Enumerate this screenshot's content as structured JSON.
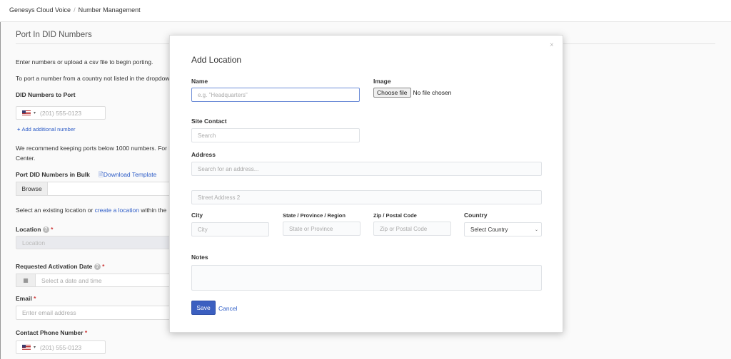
{
  "breadcrumb": [
    "Genesys Cloud Voice",
    "Number Management"
  ],
  "breadcrumb_separator": "/",
  "page": {
    "title": "Port In DID Numbers",
    "intro1": "Enter numbers or upload a csv file to begin porting.",
    "intro2": "To port a number from a country not listed in the dropdow",
    "did_label": "DID Numbers to Port",
    "phone_placeholder": "(201) 555-0123",
    "add_number": "Add additional number",
    "recommend1": "We recommend keeping ports below 1000 numbers. For l",
    "recommend2": "Center.",
    "bulk_label": "Port DID Numbers in Bulk",
    "download_template": "Download Template",
    "browse": "Browse",
    "select_loc_pre": "Select an existing location or",
    "select_loc_link": "create a location",
    "select_loc_post": "within the",
    "location_label": "Location",
    "location_placeholder": "Location",
    "activation_label": "Requested Activation Date",
    "activation_placeholder": "Select a date and time",
    "email_label": "Email",
    "email_placeholder": "Enter email address",
    "contact_label": "Contact Phone Number",
    "contact_placeholder": "(201) 555-0123",
    "required_mark": "*",
    "help_mark": "?"
  },
  "modal": {
    "title": "Add Location",
    "close": "×",
    "name_label": "Name",
    "name_placeholder": "e.g. \"Headquarters\"",
    "image_label": "Image",
    "choose_file": "Choose file",
    "no_file": "No file chosen",
    "site_contact_label": "Site Contact",
    "site_contact_placeholder": "Search",
    "address_label": "Address",
    "address_placeholder": "Search for an address...",
    "address2_placeholder": "Street Address 2",
    "city_label": "City",
    "city_placeholder": "City",
    "state_label": "State / Province / Region",
    "state_placeholder": "State or Province",
    "zip_label": "Zip / Postal Code",
    "zip_placeholder": "Zip or Postal Code",
    "country_label": "Country",
    "country_value": "Select Country",
    "notes_label": "Notes",
    "save": "Save",
    "cancel": "Cancel"
  },
  "colors": {
    "primary": "#3b5fc0",
    "link": "#2d5cc7",
    "required": "#cc3333"
  }
}
